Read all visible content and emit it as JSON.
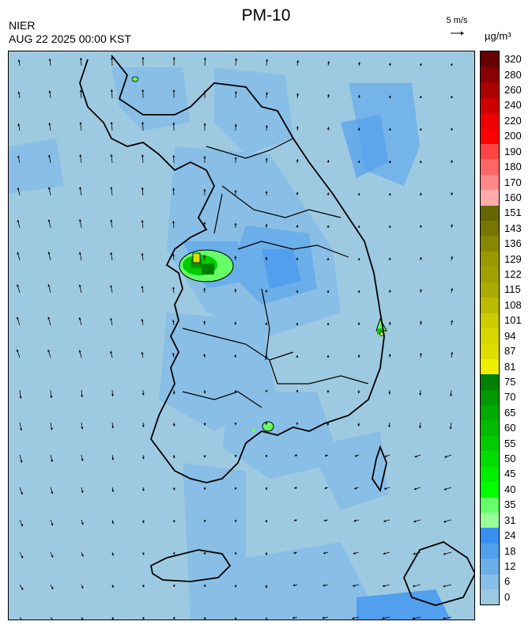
{
  "header": {
    "title": "PM-10",
    "agency": "NIER",
    "datetime": "AUG 22 2025 00:00 KST",
    "wind_scale": "5 m/s",
    "unit": "µg/m³"
  },
  "legend": {
    "levels": [
      {
        "label": "0",
        "color": "#9ecae1"
      },
      {
        "label": "6",
        "color": "#89bfe6"
      },
      {
        "label": "12",
        "color": "#6aaeea"
      },
      {
        "label": "18",
        "color": "#529fee"
      },
      {
        "label": "24",
        "color": "#3a8ff2"
      },
      {
        "label": "31",
        "color": "#99ff99"
      },
      {
        "label": "35",
        "color": "#66ff66"
      },
      {
        "label": "40",
        "color": "#00ff00"
      },
      {
        "label": "45",
        "color": "#00ee00"
      },
      {
        "label": "50",
        "color": "#00dd00"
      },
      {
        "label": "55",
        "color": "#00cc00"
      },
      {
        "label": "60",
        "color": "#00bb00"
      },
      {
        "label": "65",
        "color": "#00aa00"
      },
      {
        "label": "70",
        "color": "#009900"
      },
      {
        "label": "75",
        "color": "#008000"
      },
      {
        "label": "81",
        "color": "#eeee00"
      },
      {
        "label": "87",
        "color": "#dddd00"
      },
      {
        "label": "94",
        "color": "#d6d600"
      },
      {
        "label": "101",
        "color": "#cccc00"
      },
      {
        "label": "108",
        "color": "#bbbb00"
      },
      {
        "label": "115",
        "color": "#aaaa00"
      },
      {
        "label": "122",
        "color": "#a0a000"
      },
      {
        "label": "129",
        "color": "#999900"
      },
      {
        "label": "136",
        "color": "#888800"
      },
      {
        "label": "143",
        "color": "#777700"
      },
      {
        "label": "151",
        "color": "#666600"
      },
      {
        "label": "160",
        "color": "#ffaaaa"
      },
      {
        "label": "170",
        "color": "#ff8888"
      },
      {
        "label": "180",
        "color": "#ff6666"
      },
      {
        "label": "190",
        "color": "#ff4444"
      },
      {
        "label": "200",
        "color": "#ff0000"
      },
      {
        "label": "220",
        "color": "#ee0000"
      },
      {
        "label": "240",
        "color": "#cc0000"
      },
      {
        "label": "260",
        "color": "#aa0000"
      },
      {
        "label": "280",
        "color": "#880000"
      },
      {
        "label": "320",
        "color": "#660000"
      }
    ]
  }
}
